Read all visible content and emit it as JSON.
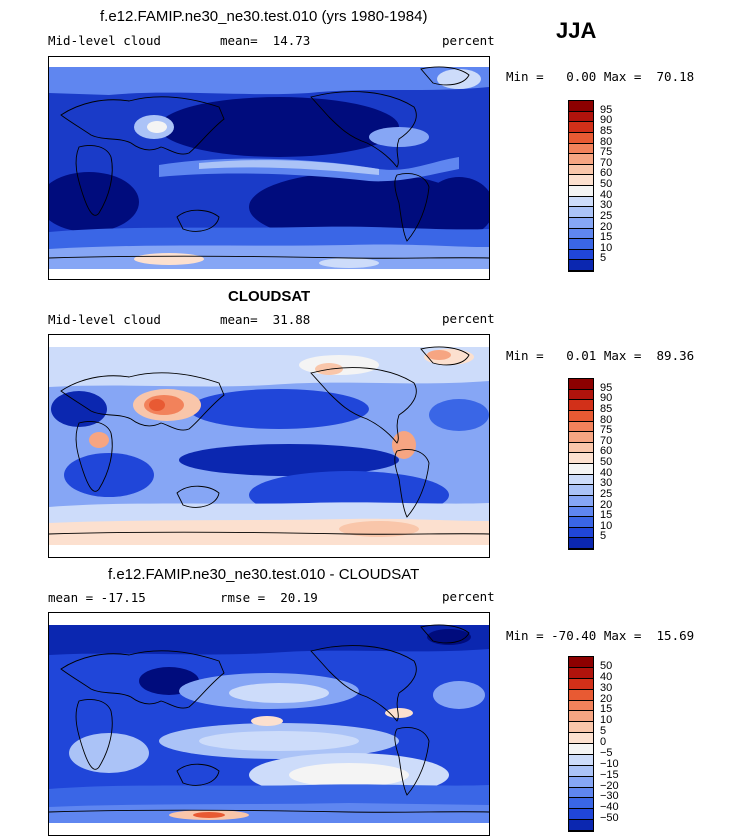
{
  "season": "JJA",
  "colors": {
    "levels_pos": [
      "#000c7d",
      "#0b27b0",
      "#2046d9",
      "#3a66e6",
      "#5f86f0",
      "#86a6f5",
      "#abc3f7",
      "#cddcfa",
      "#f4f4f4",
      "#fce0cf",
      "#f9c6aa",
      "#f6a582",
      "#f2825b",
      "#e85a33",
      "#d23019",
      "#b0130c",
      "#8c0000"
    ],
    "levels_diff": [
      "#000c7d",
      "#0b27b0",
      "#2046d9",
      "#3a66e6",
      "#5f86f0",
      "#86a6f5",
      "#abc3f7",
      "#cddcfa",
      "#f4f4f4",
      "#fce0cf",
      "#f9c6aa",
      "#f6a582",
      "#f2825b",
      "#e85a33",
      "#d23019",
      "#b0130c",
      "#8c0000"
    ]
  },
  "panels": [
    {
      "title": "f.e12.FAMIP.ne30_ne30.test.010 (yrs 1980-1984)",
      "left_label": "Mid-level cloud",
      "center_label": "mean=  14.73",
      "right_label": "percent",
      "minmax": "Min =   0.00 Max =  70.18",
      "colorbar_ticks": [
        "95",
        "90",
        "85",
        "80",
        "75",
        "70",
        "60",
        "50",
        "40",
        "30",
        "25",
        "20",
        "15",
        "10",
        "5"
      ]
    },
    {
      "title": "CLOUDSAT",
      "left_label": "Mid-level cloud",
      "center_label": "mean=  31.88",
      "right_label": "percent",
      "minmax": "Min =   0.01 Max =  89.36",
      "colorbar_ticks": [
        "95",
        "90",
        "85",
        "80",
        "75",
        "70",
        "60",
        "50",
        "40",
        "30",
        "25",
        "20",
        "15",
        "10",
        "5"
      ]
    },
    {
      "title": "f.e12.FAMIP.ne30_ne30.test.010 - CLOUDSAT",
      "left_label": "mean = -17.15",
      "center_label": "rmse =  20.19",
      "right_label": "percent",
      "minmax": "Min = -70.40 Max =  15.69",
      "colorbar_ticks": [
        "50",
        "40",
        "30",
        "20",
        "15",
        "10",
        "5",
        "0",
        "−5",
        "−10",
        "−15",
        "−20",
        "−30",
        "−40",
        "−50"
      ]
    }
  ],
  "chart_data": [
    {
      "type": "heatmap",
      "title": "f.e12.FAMIP.ne30_ne30.test.010 (yrs 1980-1984)",
      "variable": "Mid-level cloud",
      "units": "percent",
      "mean": 14.73,
      "min": 0.0,
      "max": 70.18,
      "contour_levels": [
        5,
        10,
        15,
        20,
        25,
        30,
        40,
        50,
        60,
        70,
        75,
        80,
        85,
        90,
        95
      ]
    },
    {
      "type": "heatmap",
      "title": "CLOUDSAT",
      "variable": "Mid-level cloud",
      "units": "percent",
      "mean": 31.88,
      "min": 0.01,
      "max": 89.36,
      "contour_levels": [
        5,
        10,
        15,
        20,
        25,
        30,
        40,
        50,
        60,
        70,
        75,
        80,
        85,
        90,
        95
      ]
    },
    {
      "type": "heatmap",
      "title": "f.e12.FAMIP.ne30_ne30.test.010 - CLOUDSAT",
      "units": "percent",
      "mean": -17.15,
      "rmse": 20.19,
      "min": -70.4,
      "max": 15.69,
      "contour_levels": [
        -50,
        -40,
        -30,
        -20,
        -15,
        -10,
        -5,
        0,
        5,
        10,
        15,
        20,
        30,
        40,
        50
      ]
    }
  ]
}
